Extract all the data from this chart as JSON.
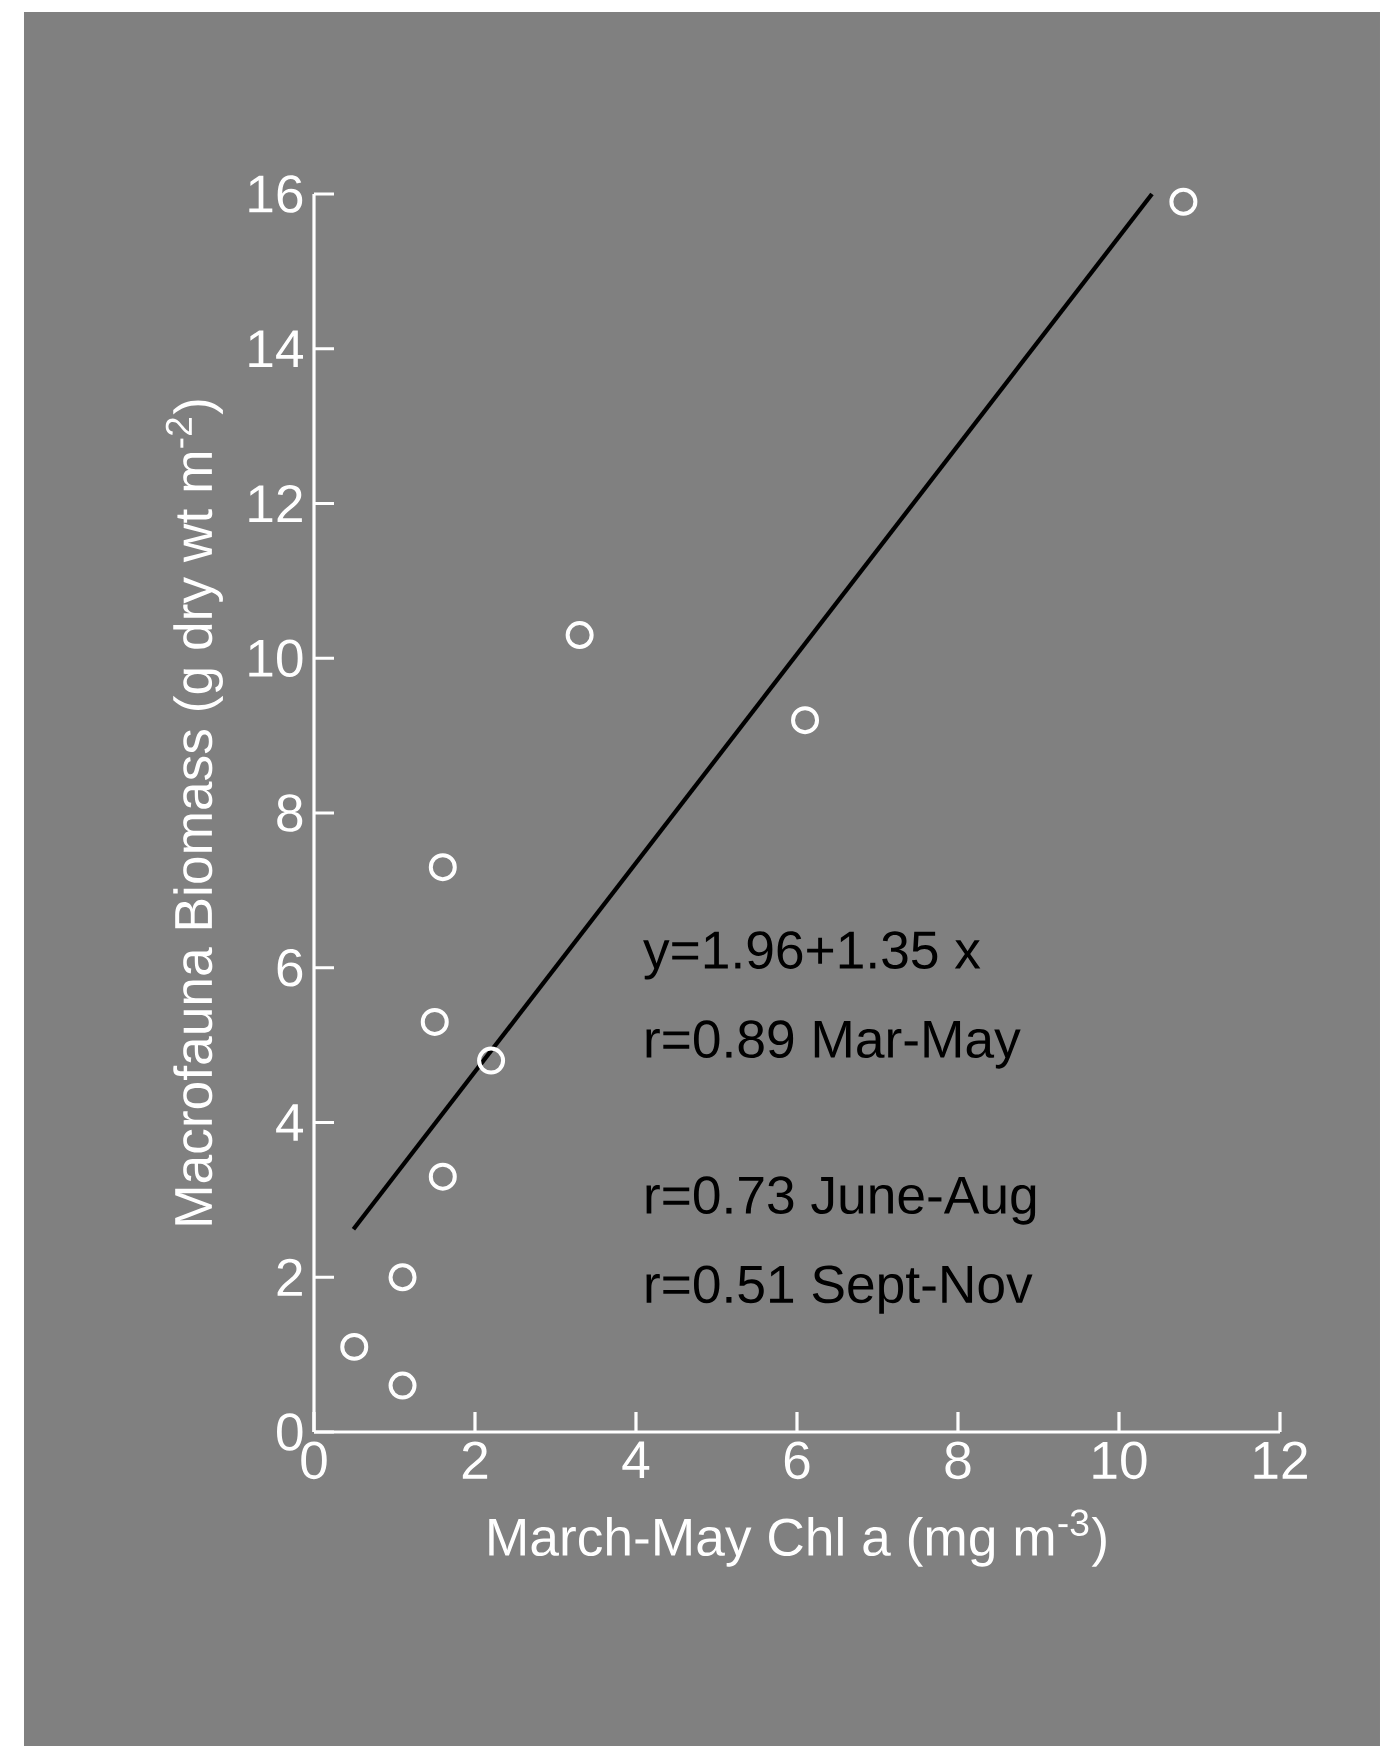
{
  "chart_data": {
    "type": "scatter",
    "xlabel": "March-May Chl a (mg m$^{-3}$)",
    "ylabel": "Macrofauna Biomass (g dry wt m$^{-2}$)",
    "xlim": [
      0,
      12
    ],
    "ylim": [
      0,
      16
    ],
    "xticks": [
      0,
      2,
      4,
      6,
      8,
      10,
      12
    ],
    "yticks": [
      0,
      2,
      4,
      6,
      8,
      10,
      12,
      14,
      16
    ],
    "grid": false,
    "series": [
      {
        "color": "#ffffff",
        "marker": "circle",
        "x": [
          10.8,
          3.3,
          6.1,
          1.6,
          1.5,
          2.2,
          1.6,
          1.1,
          0.5,
          1.1
        ],
        "values": [
          15.9,
          10.3,
          9.2,
          7.3,
          5.3,
          4.8,
          3.3,
          2.0,
          1.1,
          0.6
        ]
      },
      {
        "type": "line",
        "color": "#000000",
        "marker": "none",
        "line_style": "solid",
        "x": [
          0.49,
          10.41
        ],
        "values": [
          2.62,
          16.0
        ]
      }
    ],
    "annotations": [
      "y=1.96+1.35 x",
      "r=0.89 Mar-May",
      "r=0.73 June-Aug",
      "r=0.51 Sept-Nov"
    ]
  }
}
